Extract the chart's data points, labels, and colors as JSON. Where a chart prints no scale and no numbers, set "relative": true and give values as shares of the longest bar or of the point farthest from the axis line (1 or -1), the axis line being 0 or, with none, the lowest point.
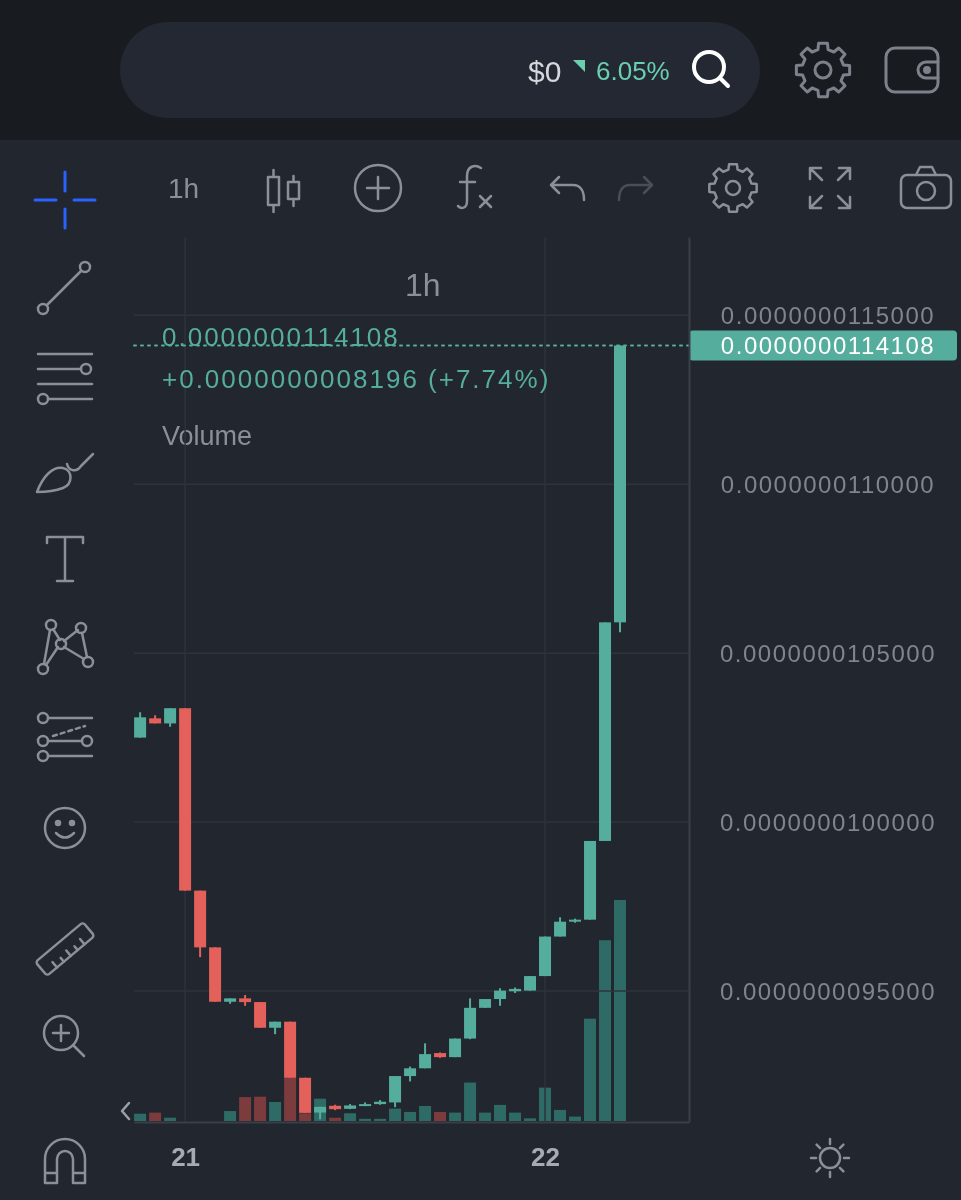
{
  "chart_data": [
    {
      "type": "candlestick",
      "title": "1h",
      "annotations": [
        "$0",
        "6.05%",
        "1h",
        "0.0000000114108",
        "+0.0000000008196 (+7.74%)"
      ],
      "x": [
        20.875,
        20.9167,
        20.9583,
        21,
        21.0417,
        21.0833,
        21.125,
        21.1667,
        21.2083,
        21.25,
        21.2917,
        21.3333,
        21.375,
        21.4167,
        21.4583,
        21.5,
        21.5417,
        21.5833,
        21.625,
        21.6667,
        21.7083,
        21.75,
        21.7917,
        21.8333,
        21.875,
        21.9167,
        21.9583,
        22,
        22.0417,
        22.0833,
        22.125,
        22.1667,
        22.2083
      ],
      "xlim": [
        20.858,
        22.4
      ],
      "xticks": [
        21,
        22
      ],
      "ylim": [
        9.112e-09,
        1.1732e-08
      ],
      "yticks": [
        {
          "value": 9.5e-09,
          "label": "0.0000000095000"
        },
        {
          "value": 1e-08,
          "label": "0.0000000100000"
        },
        {
          "value": 1.05e-08,
          "label": "0.0000000105000"
        },
        {
          "value": 1.1e-08,
          "label": "0.0000000110000"
        },
        {
          "value": 1.15e-08,
          "label": "0.0000000115000"
        }
      ],
      "ohlc": [
        [
          1.025e-08,
          1.0325e-08,
          1.025e-08,
          1.031e-08
        ],
        [
          1.0307e-08,
          1.0316e-08,
          1.0292e-08,
          1.0292e-08
        ],
        [
          1.0292e-08,
          1.0337e-08,
          1.0282e-08,
          1.0337e-08
        ],
        [
          1.0337e-08,
          1.0337e-08,
          9.797e-09,
          9.797e-09
        ],
        [
          9.797e-09,
          9.797e-09,
          9.6e-09,
          9.629e-09
        ],
        [
          9.629e-09,
          9.629e-09,
          9.468e-09,
          9.468e-09
        ],
        [
          9.468e-09,
          9.478e-09,
          9.462e-09,
          9.478e-09
        ],
        [
          9.478e-09,
          9.488e-09,
          9.456e-09,
          9.467e-09
        ],
        [
          9.467e-09,
          9.467e-09,
          9.391e-09,
          9.391e-09
        ],
        [
          9.391e-09,
          9.409e-09,
          9.372e-09,
          9.409e-09
        ],
        [
          9.409e-09,
          9.409e-09,
          9.243e-09,
          9.243e-09
        ],
        [
          9.243e-09,
          9.243e-09,
          9.139e-09,
          9.139e-09
        ],
        [
          9.14e-09,
          9.157e-09,
          9.12e-09,
          9.157e-09
        ],
        [
          9.16e-09,
          9.163e-09,
          9.147e-09,
          9.15e-09
        ],
        [
          9.151e-09,
          9.165e-09,
          9.15e-09,
          9.161e-09
        ],
        [
          9.161e-09,
          9.17e-09,
          9.159e-09,
          9.165e-09
        ],
        [
          9.165e-09,
          9.177e-09,
          9.163e-09,
          9.172e-09
        ],
        [
          9.17e-09,
          9.248e-09,
          9.156e-09,
          9.248e-09
        ],
        [
          9.248e-09,
          9.276e-09,
          9.232e-09,
          9.271e-09
        ],
        [
          9.271e-09,
          9.345e-09,
          9.271e-09,
          9.313e-09
        ],
        [
          9.316e-09,
          9.318e-09,
          9.302e-09,
          9.304e-09
        ],
        [
          9.304e-09,
          9.359e-09,
          9.304e-09,
          9.359e-09
        ],
        [
          9.359e-09,
          9.478e-09,
          9.357e-09,
          9.45e-09
        ],
        [
          9.45e-09,
          9.476e-09,
          9.45e-09,
          9.476e-09
        ],
        [
          9.476e-09,
          9.508e-09,
          9.456e-09,
          9.501e-09
        ],
        [
          9.499e-09,
          9.51e-09,
          9.494e-09,
          9.506e-09
        ],
        [
          9.501e-09,
          9.544e-09,
          9.501e-09,
          9.544e-09
        ],
        [
          9.544e-09,
          9.661e-09,
          9.544e-09,
          9.661e-09
        ],
        [
          9.661e-09,
          9.718e-09,
          9.661e-09,
          9.705e-09
        ],
        [
          9.705e-09,
          9.714e-09,
          9.702e-09,
          9.711e-09
        ],
        [
          9.711e-09,
          9.944e-09,
          9.711e-09,
          9.944e-09
        ],
        [
          9.944e-09,
          1.05912e-08,
          9.944e-09,
          1.05912e-08
        ],
        [
          1.05912e-08,
          1.14108e-08,
          1.0562e-08,
          1.14108e-08
        ]
      ],
      "colors": [
        "#55ad9e",
        "#e4605a",
        "#55ad9e",
        "#e4605a",
        "#e4605a",
        "#e4605a",
        "#55ad9e",
        "#e4605a",
        "#e4605a",
        "#55ad9e",
        "#e4605a",
        "#e4605a",
        "#55ad9e",
        "#e4605a",
        "#55ad9e",
        "#55ad9e",
        "#55ad9e",
        "#55ad9e",
        "#55ad9e",
        "#55ad9e",
        "#e4605a",
        "#55ad9e",
        "#55ad9e",
        "#55ad9e",
        "#55ad9e",
        "#55ad9e",
        "#55ad9e",
        "#55ad9e",
        "#55ad9e",
        "#55ad9e",
        "#55ad9e",
        "#55ad9e",
        "#55ad9e"
      ],
      "grid": true,
      "ref_lines": [
        {
          "axis": "y",
          "value": 1.14108e-08,
          "label": "0.0000000114108",
          "color": "#55ad9e",
          "line_style": "dotted"
        }
      ]
    },
    {
      "type": "bar",
      "title": "Volume",
      "relative": true,
      "x": [
        20.875,
        20.9167,
        20.9583,
        21.125,
        21.1667,
        21.2083,
        21.25,
        21.2917,
        21.3333,
        21.375,
        21.4167,
        21.4583,
        21.5,
        21.5417,
        21.5833,
        21.625,
        21.6667,
        21.7083,
        21.75,
        21.7917,
        21.8333,
        21.875,
        21.9167,
        21.9583,
        22,
        22.0417,
        22.0833,
        22.125,
        22.1667,
        22.2083
      ],
      "xlim": [
        20.858,
        22.4
      ],
      "values": [
        0.033,
        0.038,
        0.015,
        0.045,
        0.108,
        0.11,
        0.086,
        0.197,
        0.035,
        0.101,
        0.015,
        0.035,
        0.01,
        0.01,
        0.056,
        0.041,
        0.068,
        0.041,
        0.038,
        0.174,
        0.038,
        0.073,
        0.038,
        0.012,
        0.151,
        0.05,
        0.02,
        0.463,
        0.818,
        1
      ],
      "colors": [
        "#2f6b66",
        "#7c3b3d",
        "#2f6b66",
        "#2f6b66",
        "#7c3b3d",
        "#7c3b3d",
        "#2f6b66",
        "#7c3b3d",
        "#7c3b3d",
        "#2f6b66",
        "#7c3b3d",
        "#2f6b66",
        "#2f6b66",
        "#2f6b66",
        "#2f6b66",
        "#2f6b66",
        "#2f6b66",
        "#7c3b3d",
        "#2f6b66",
        "#2f6b66",
        "#2f6b66",
        "#2f6b66",
        "#2f6b66",
        "#2f6b66",
        "#2f6b66",
        "#2f6b66",
        "#2f6b66",
        "#2f6b66",
        "#2f6b66",
        "#2f6b66"
      ]
    }
  ]
}
